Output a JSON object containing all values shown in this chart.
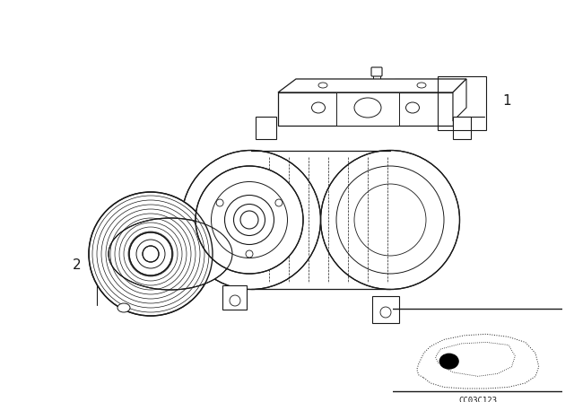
{
  "bg_color": "#ffffff",
  "line_color": "#1a1a1a",
  "fig_width": 6.4,
  "fig_height": 4.48,
  "dpi": 100,
  "part_number": "CC03C123",
  "label_1": "1",
  "label_2": "2"
}
